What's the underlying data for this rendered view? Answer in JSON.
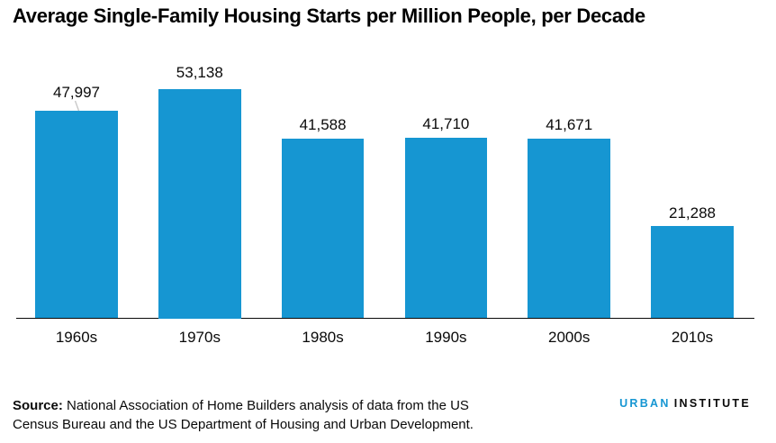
{
  "chart_data": {
    "type": "bar",
    "title": "Average Single-Family Housing Starts per Million People, per Decade",
    "categories": [
      "1960s",
      "1970s",
      "1980s",
      "1990s",
      "2000s",
      "2010s"
    ],
    "values": [
      47997,
      53138,
      41588,
      41710,
      41671,
      21288
    ],
    "value_labels": [
      "47,997",
      "53,138",
      "41,588",
      "41,710",
      "41,671",
      "21,288"
    ],
    "xlabel": "",
    "ylabel": "",
    "ylim": [
      0,
      55000
    ],
    "grid": false,
    "legend": false,
    "bar_color": "#1696d2",
    "axis_line_color": "#0a0a0a",
    "label_connector": {
      "category": "1960s",
      "color": "#c9c9c9"
    }
  },
  "footer": {
    "source_label": "Source:",
    "source_line1": "National Association of Home Builders analysis of data from the US",
    "source_line2": "Census Bureau and the US Department of Housing and Urban Development.",
    "logo": {
      "urban": "URBAN",
      "institute": "INSTITUTE",
      "urban_color": "#1696d2",
      "institute_color": "#0a0a0a"
    }
  }
}
